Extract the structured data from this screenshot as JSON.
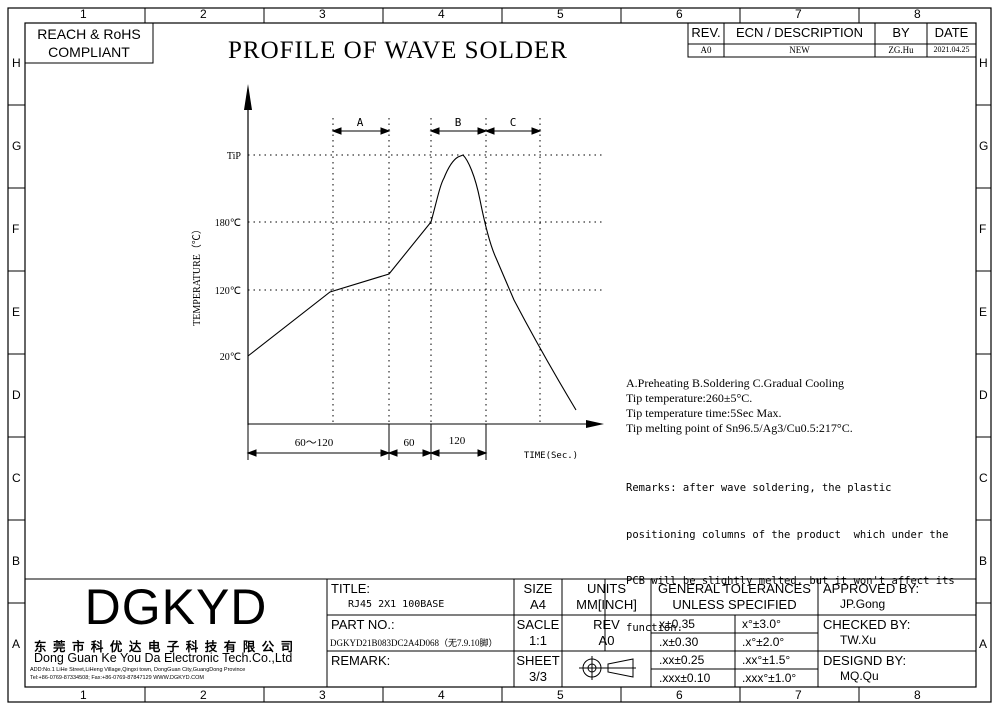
{
  "border": {
    "cols": [
      "1",
      "2",
      "3",
      "4",
      "5",
      "6",
      "7",
      "8"
    ],
    "rows": [
      "H",
      "G",
      "F",
      "E",
      "D",
      "C",
      "B",
      "A"
    ]
  },
  "compliance": {
    "line1": "REACH & RoHS",
    "line2": "COMPLIANT"
  },
  "page_title": "PROFILE OF WAVE SOLDER",
  "revision_table": {
    "headers": {
      "rev": "REV.",
      "ecn": "ECN / DESCRIPTION",
      "by": "BY",
      "date": "DATE"
    },
    "row": {
      "rev": "A0",
      "ecn": "NEW",
      "by": "ZG.Hu",
      "date": "2021.04.25"
    }
  },
  "chart_data": {
    "type": "line",
    "ylabel": "TEMPERATURE（℃）",
    "xlabel": "TIME(Sec.)",
    "y_ticks": [
      "TiP",
      "180℃",
      "120℃",
      "20℃"
    ],
    "zones": [
      "A",
      "B",
      "C"
    ],
    "time_segments": [
      "60～120",
      "60",
      "120"
    ],
    "note": "Profile curve rises from 20℃ through 120℃ and 180℃ to the TiP peak within zone B, then falls."
  },
  "notes": {
    "line1": "A.Preheating  B.Soldering  C.Gradual Cooling",
    "line2": "Tip temperature:260±5°C.",
    "line3": "Tip temperature time:5Sec Max.",
    "line4": "Tip melting point of Sn96.5/Ag3/Cu0.5:217°C."
  },
  "remarks": {
    "line1": "Remarks: after wave soldering, the plastic",
    "line2": "positioning columns of the product  which under the",
    "line3": "PCB will be slightly melted, but it won't affect its",
    "line4": "function."
  },
  "title_block": {
    "logo": "DGKYD",
    "company_cn": "东 莞 市 科 优 达 电 子 科 技 有 限 公 司",
    "company_en": "Dong Guan Ke You Da Electronic Tech.Co.,Ltd",
    "address": "ADD:No.1 LiHe Street,LiHeng Village,Qingxi town, DongGuan City,GuangDong Province",
    "contact": "Tel:+86-0769-87334508; Fax:+86-0769-87847129  WWW.DGKYD.COM",
    "title_label": "TITLE:",
    "title_value": "RJ45 2X1 100BASE",
    "part_label": "PART NO.:",
    "part_value": "DGKYD21B083DC2A4D068（无7.9.10脚）",
    "remark_label": "REMARK:",
    "size_label": "SIZE",
    "size_value": "A4",
    "units_label": "UNITS",
    "units_value": "MM[INCH]",
    "scale_label": "SACLE",
    "scale_value": "1:1",
    "rev_label": "REV",
    "rev_value": "A0",
    "sheet_label": "SHEET",
    "sheet_value": "3/3",
    "tol_header1": "GENERAL TOLERANCES",
    "tol_header2": "UNLESS SPECIFIED",
    "tol": [
      [
        "x±0.35",
        "x°±3.0°"
      ],
      [
        ".x±0.30",
        ".x°±2.0°"
      ],
      [
        ".xx±0.25",
        ".xx°±1.5°"
      ],
      [
        ".xxx±0.10",
        ".xxx°±1.0°"
      ]
    ],
    "approved_label": "APPROVED BY:",
    "approved_value": "JP.Gong",
    "checked_label": "CHECKED BY:",
    "checked_value": "TW.Xu",
    "designed_label": "DESIGND BY:",
    "designed_value": "MQ.Qu"
  }
}
